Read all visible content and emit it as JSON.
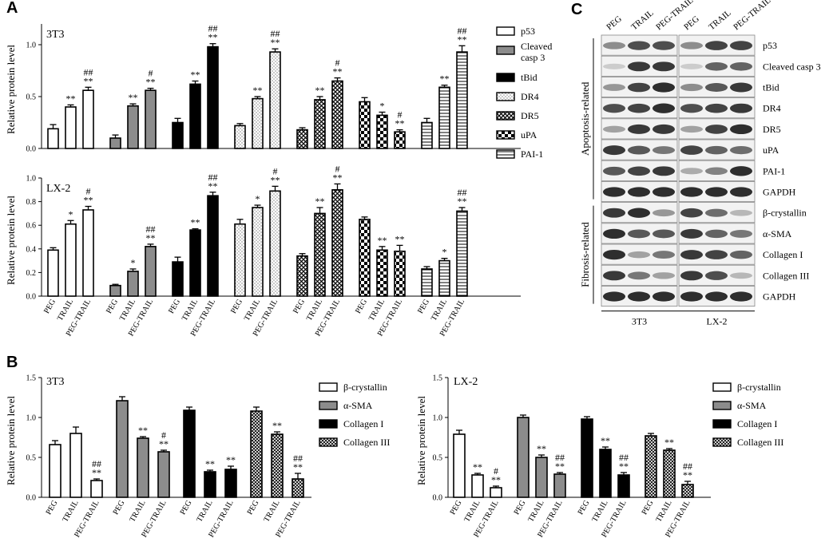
{
  "panels": [
    {
      "label": "A"
    },
    {
      "label": "B"
    },
    {
      "label": "C"
    }
  ],
  "colors": {
    "p53": "#ffffff",
    "Cleaved casp 3": "#8c8c8c",
    "tBid": "#000000",
    "DR4": "#f2f2f2",
    "DR5": "#ffffff",
    "uPA": "#ffffff",
    "PAI-1": "#ffffff",
    "β-crystallin": "#ffffff",
    "α-SMA": "#8c8c8c",
    "Collagen I": "#000000",
    "Collagen III": "#ffffff"
  },
  "legend_A": [
    "p53",
    "Cleaved casp 3",
    "tBid",
    "DR4",
    "DR5",
    "uPA",
    "PAI-1"
  ],
  "legend_B": [
    "β-crystallin",
    "α-SMA",
    "Collagen I",
    "Collagen III"
  ],
  "chart_data": [
    {
      "type": "bar",
      "panel": "A",
      "title": "3T3",
      "xlabel": "",
      "ylabel": "Relative protein level",
      "ylim": [
        0,
        1.2
      ],
      "yticks": [
        "0.0",
        "0.5",
        "1.0"
      ],
      "categories": [
        "PEG",
        "TRAIL",
        "PEG-TRAIL"
      ],
      "show_xticks": false,
      "series": [
        {
          "name": "p53",
          "values": [
            0.19,
            0.4,
            0.56
          ],
          "errors": [
            0.04,
            0.02,
            0.03
          ],
          "annotations": [
            "",
            "**",
            "**\n##"
          ]
        },
        {
          "name": "Cleaved casp 3",
          "values": [
            0.1,
            0.41,
            0.56
          ],
          "errors": [
            0.03,
            0.02,
            0.02
          ],
          "annotations": [
            "",
            "**",
            "**\n#"
          ]
        },
        {
          "name": "tBid",
          "values": [
            0.25,
            0.62,
            0.98
          ],
          "errors": [
            0.04,
            0.03,
            0.03
          ],
          "annotations": [
            "",
            "**",
            "**\n##"
          ]
        },
        {
          "name": "DR4",
          "values": [
            0.22,
            0.48,
            0.93
          ],
          "errors": [
            0.02,
            0.02,
            0.03
          ],
          "annotations": [
            "",
            "**",
            "**\n##"
          ]
        },
        {
          "name": "DR5",
          "values": [
            0.18,
            0.47,
            0.65
          ],
          "errors": [
            0.02,
            0.03,
            0.03
          ],
          "annotations": [
            "",
            "**",
            "**\n#"
          ]
        },
        {
          "name": "uPA",
          "values": [
            0.45,
            0.32,
            0.16
          ],
          "errors": [
            0.04,
            0.03,
            0.02
          ],
          "annotations": [
            "",
            "*",
            "**\n#"
          ]
        },
        {
          "name": "PAI-1",
          "values": [
            0.25,
            0.59,
            0.93
          ],
          "errors": [
            0.04,
            0.02,
            0.06
          ],
          "annotations": [
            "",
            "**",
            "**\n##"
          ]
        }
      ]
    },
    {
      "type": "bar",
      "panel": "A",
      "title": "LX-2",
      "xlabel": "",
      "ylabel": "Relative protein level",
      "ylim": [
        0,
        1.0
      ],
      "yticks": [
        "0.0",
        "0.2",
        "0.4",
        "0.6",
        "0.8",
        "1.0"
      ],
      "categories": [
        "PEG",
        "TRAIL",
        "PEG-TRAIL"
      ],
      "show_xticks": true,
      "series": [
        {
          "name": "p53",
          "values": [
            0.39,
            0.61,
            0.73
          ],
          "errors": [
            0.02,
            0.03,
            0.03
          ],
          "annotations": [
            "",
            "*",
            "**\n#"
          ]
        },
        {
          "name": "Cleaved casp 3",
          "values": [
            0.09,
            0.21,
            0.42
          ],
          "errors": [
            0.01,
            0.02,
            0.02
          ],
          "annotations": [
            "",
            "*",
            "**\n##"
          ]
        },
        {
          "name": "tBid",
          "values": [
            0.29,
            0.56,
            0.85
          ],
          "errors": [
            0.04,
            0.01,
            0.03
          ],
          "annotations": [
            "",
            "**",
            "**\n##"
          ]
        },
        {
          "name": "DR4",
          "values": [
            0.61,
            0.75,
            0.89
          ],
          "errors": [
            0.04,
            0.02,
            0.04
          ],
          "annotations": [
            "",
            "*",
            "**\n#"
          ]
        },
        {
          "name": "DR5",
          "values": [
            0.34,
            0.7,
            0.9
          ],
          "errors": [
            0.02,
            0.05,
            0.05
          ],
          "annotations": [
            "",
            "**",
            "**\n#"
          ]
        },
        {
          "name": "uPA",
          "values": [
            0.65,
            0.39,
            0.38
          ],
          "errors": [
            0.02,
            0.03,
            0.05
          ],
          "annotations": [
            "",
            "**",
            "**"
          ]
        },
        {
          "name": "PAI-1",
          "values": [
            0.23,
            0.3,
            0.72
          ],
          "errors": [
            0.02,
            0.02,
            0.03
          ],
          "annotations": [
            "",
            "*",
            "**\n##"
          ]
        }
      ]
    },
    {
      "type": "bar",
      "panel": "B",
      "title": "3T3",
      "xlabel": "",
      "ylabel": "Relative protein level",
      "ylim": [
        0,
        1.5
      ],
      "yticks": [
        "0.0",
        "0.5",
        "1.0",
        "1.5"
      ],
      "categories": [
        "PEG",
        "TRAIL",
        "PEG-TRAIL"
      ],
      "show_xticks": true,
      "series": [
        {
          "name": "β-crystallin",
          "values": [
            0.66,
            0.8,
            0.21
          ],
          "errors": [
            0.05,
            0.08,
            0.02
          ],
          "annotations": [
            "",
            "",
            "**\n##"
          ]
        },
        {
          "name": "α-SMA",
          "values": [
            1.21,
            0.74,
            0.57
          ],
          "errors": [
            0.05,
            0.02,
            0.02
          ],
          "annotations": [
            "",
            "**",
            "**\n#"
          ]
        },
        {
          "name": "Collagen I",
          "values": [
            1.09,
            0.32,
            0.35
          ],
          "errors": [
            0.04,
            0.02,
            0.04
          ],
          "annotations": [
            "",
            "**",
            "**"
          ]
        },
        {
          "name": "Collagen III",
          "values": [
            1.08,
            0.79,
            0.23
          ],
          "errors": [
            0.05,
            0.03,
            0.07
          ],
          "annotations": [
            "",
            "**",
            "**\n##"
          ]
        }
      ]
    },
    {
      "type": "bar",
      "panel": "B",
      "title": "LX-2",
      "xlabel": "",
      "ylabel": "Relative protein level",
      "ylim": [
        0,
        1.5
      ],
      "yticks": [
        "0.0",
        "0.5",
        "1.0",
        "1.5"
      ],
      "categories": [
        "PEG",
        "TRAIL",
        "PEG-TRAIL"
      ],
      "show_xticks": true,
      "series": [
        {
          "name": "β-crystallin",
          "values": [
            0.79,
            0.28,
            0.12
          ],
          "errors": [
            0.05,
            0.02,
            0.02
          ],
          "annotations": [
            "",
            "**",
            "**\n#"
          ]
        },
        {
          "name": "α-SMA",
          "values": [
            1.0,
            0.5,
            0.29
          ],
          "errors": [
            0.03,
            0.03,
            0.02
          ],
          "annotations": [
            "",
            "**",
            "**\n##"
          ]
        },
        {
          "name": "Collagen I",
          "values": [
            0.98,
            0.6,
            0.28
          ],
          "errors": [
            0.03,
            0.03,
            0.03
          ],
          "annotations": [
            "",
            "**",
            "**\n##"
          ]
        },
        {
          "name": "Collagen III",
          "values": [
            0.77,
            0.59,
            0.16
          ],
          "errors": [
            0.03,
            0.02,
            0.04
          ],
          "annotations": [
            "",
            "**",
            "**\n##"
          ]
        }
      ]
    }
  ],
  "blot": {
    "columns": [
      "PEG",
      "TRAIL",
      "PEG-TRAIL",
      "PEG",
      "TRAIL",
      "PEG-TRAIL"
    ],
    "cell_lines": [
      "3T3",
      "LX-2"
    ],
    "groups": [
      {
        "label": "Apoptosis-related",
        "rows": [
          "p53",
          "Cleaved casp 3",
          "tBid",
          "DR4",
          "DR5",
          "uPA",
          "PAI-1",
          "GAPDH"
        ]
      },
      {
        "label": "Fibrosis-related",
        "rows": [
          "β-crystallin",
          "α-SMA",
          "Collagen I",
          "Collagen III",
          "GAPDH"
        ]
      }
    ],
    "intensities": [
      [
        0.45,
        0.75,
        0.75,
        0.45,
        0.8,
        0.8
      ],
      [
        0.15,
        0.85,
        0.85,
        0.15,
        0.65,
        0.65
      ],
      [
        0.4,
        0.8,
        0.9,
        0.45,
        0.7,
        0.85
      ],
      [
        0.75,
        0.8,
        0.9,
        0.75,
        0.8,
        0.85
      ],
      [
        0.35,
        0.85,
        0.85,
        0.35,
        0.8,
        0.9
      ],
      [
        0.85,
        0.7,
        0.55,
        0.8,
        0.65,
        0.6
      ],
      [
        0.7,
        0.8,
        0.85,
        0.3,
        0.5,
        0.9
      ],
      [
        0.9,
        0.9,
        0.9,
        0.9,
        0.9,
        0.9
      ],
      [
        0.85,
        0.9,
        0.4,
        0.8,
        0.6,
        0.25
      ],
      [
        0.9,
        0.7,
        0.7,
        0.85,
        0.65,
        0.55
      ],
      [
        0.9,
        0.35,
        0.55,
        0.85,
        0.8,
        0.65
      ],
      [
        0.85,
        0.55,
        0.35,
        0.85,
        0.75,
        0.25
      ],
      [
        0.9,
        0.9,
        0.9,
        0.9,
        0.9,
        0.9
      ]
    ]
  }
}
